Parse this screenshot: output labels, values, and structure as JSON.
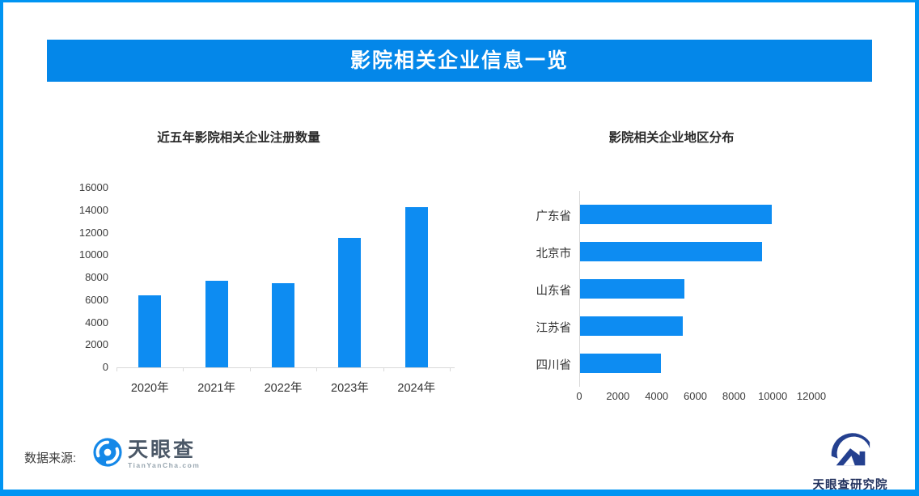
{
  "page": {
    "title": "影院相关企业信息一览",
    "banner_color": "#0487e9",
    "border_color": "#0094f2",
    "background": "#ffffff"
  },
  "chart_data": [
    {
      "type": "bar",
      "orientation": "vertical",
      "title": "近五年影院相关企业注册数量",
      "categories": [
        "2020年",
        "2021年",
        "2022年",
        "2023年",
        "2024年"
      ],
      "values": [
        6400,
        7700,
        7500,
        11500,
        14300
      ],
      "ylim": [
        0,
        16000
      ],
      "ytick_step": 2000,
      "grid": false,
      "legend": false,
      "bar_color": "#0d8cf2",
      "axis_color": "#d9d9d9"
    },
    {
      "type": "bar",
      "orientation": "horizontal",
      "title": "影院相关企业地区分布",
      "categories": [
        "广东省",
        "北京市",
        "山东省",
        "江苏省",
        "四川省"
      ],
      "values": [
        9900,
        9400,
        5400,
        5300,
        4200
      ],
      "xlim": [
        0,
        12000
      ],
      "xtick_step": 2000,
      "grid": false,
      "legend": false,
      "bar_color": "#0d8cf2",
      "axis_color": "#d9d9d9"
    }
  ],
  "footer": {
    "source_label": "数据来源:",
    "brand": {
      "name": "天眼查",
      "domain": "TianYanCha.com",
      "icon_color": "#1488e8"
    },
    "research": {
      "name": "天眼查研究院",
      "icon_color": "#24408f"
    }
  }
}
